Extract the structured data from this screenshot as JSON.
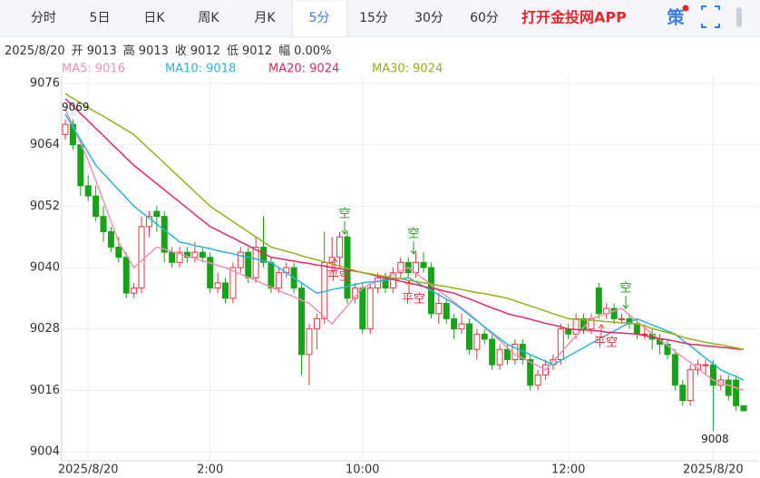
{
  "toolbar": {
    "tabs": [
      "分时",
      "5日",
      "日K",
      "周K",
      "月K",
      "5分",
      "15分",
      "30分",
      "60分"
    ],
    "active_tab": "5分",
    "app_link": "打开金投网APP",
    "strategy": "策"
  },
  "quote": {
    "date": "2025/8/20",
    "fields": [
      {
        "label": "开",
        "value": 9013
      },
      {
        "label": "高",
        "value": 9013
      },
      {
        "label": "收",
        "value": 9012
      },
      {
        "label": "低",
        "value": 9012
      },
      {
        "label": "幅",
        "value": "0.00%"
      }
    ]
  },
  "chart_data": {
    "type": "candlestick",
    "categories": [
      null,
      null,
      null,
      "2025/8/20",
      null,
      null,
      null,
      null,
      null,
      null,
      null,
      null,
      null,
      null,
      null,
      null,
      null,
      null,
      null,
      "2:00",
      null,
      null,
      null,
      null,
      null,
      null,
      null,
      null,
      null,
      null,
      null,
      null,
      null,
      null,
      null,
      null,
      null,
      null,
      null,
      "10:00",
      null,
      null,
      null,
      null,
      null,
      null,
      null,
      null,
      null,
      null,
      null,
      null,
      null,
      null,
      null,
      null,
      null,
      null,
      null,
      null,
      null,
      null,
      null,
      null,
      null,
      null,
      "12:00",
      null,
      null,
      null,
      null,
      null,
      null,
      null,
      null,
      null,
      null,
      null,
      null,
      null,
      null,
      null,
      null,
      null,
      null,
      "2025/8/20",
      null,
      null,
      null,
      null
    ],
    "ohlc": [
      [
        9066,
        9069,
        9065,
        9068
      ],
      [
        9068,
        9069,
        9063,
        9064
      ],
      [
        9064,
        9065,
        9054,
        9056
      ],
      [
        9056,
        9058,
        9053,
        9054
      ],
      [
        9054,
        9056,
        9049,
        9050
      ],
      [
        9050,
        9052,
        9045,
        9047
      ],
      [
        9047,
        9048,
        9043,
        9044
      ],
      [
        9044,
        9046,
        9041,
        9042
      ],
      [
        9042,
        9043,
        9034,
        9035
      ],
      [
        9035,
        9037,
        9034,
        9036
      ],
      [
        9036,
        9050,
        9035,
        9048
      ],
      [
        9048,
        9051,
        9046,
        9050
      ],
      [
        9051,
        9052,
        9047,
        9050
      ],
      [
        9050,
        9051,
        9041,
        9043
      ],
      [
        9043,
        9044,
        9040,
        9041
      ],
      [
        9041,
        9044,
        9040,
        9043
      ],
      [
        9043,
        9044,
        9041,
        9042
      ],
      [
        9042,
        9045,
        9041,
        9043
      ],
      [
        9043,
        9044,
        9041,
        9042
      ],
      [
        9042,
        9043,
        9035,
        9036
      ],
      [
        9036,
        9039,
        9035,
        9037
      ],
      [
        9037,
        9038,
        9033,
        9034
      ],
      [
        9034,
        9041,
        9033,
        9040
      ],
      [
        9040,
        9044,
        9039,
        9043
      ],
      [
        9043,
        9044,
        9037,
        9038
      ],
      [
        9038,
        9046,
        9037,
        9044
      ],
      [
        9044,
        9050,
        9040,
        9041
      ],
      [
        9041,
        9042,
        9035,
        9036
      ],
      [
        9036,
        9040,
        9035,
        9039
      ],
      [
        9039,
        9041,
        9038,
        9040
      ],
      [
        9040,
        9041,
        9035,
        9036
      ],
      [
        9036,
        9037,
        9019,
        9023
      ],
      [
        9023,
        9029,
        9017,
        9028
      ],
      [
        9028,
        9031,
        9024,
        9030
      ],
      [
        9030,
        9047,
        9029,
        9041
      ],
      [
        9041,
        9046,
        9039,
        9042
      ],
      [
        9042,
        9047,
        9040,
        9046
      ],
      [
        9046,
        9047,
        9033,
        9034
      ],
      [
        9034,
        9037,
        9033,
        9036
      ],
      [
        9036,
        9037,
        9027,
        9028
      ],
      [
        9028,
        9037,
        9027,
        9036
      ],
      [
        9036,
        9039,
        9035,
        9038
      ],
      [
        9038,
        9039,
        9035,
        9036
      ],
      [
        9036,
        9040,
        9035,
        9039
      ],
      [
        9039,
        9042,
        9038,
        9041
      ],
      [
        9041,
        9042,
        9038,
        9039
      ],
      [
        9039,
        9043,
        9038,
        9041
      ],
      [
        9041,
        9043,
        9039,
        9040
      ],
      [
        9040,
        9041,
        9030,
        9031
      ],
      [
        9031,
        9035,
        9029,
        9033
      ],
      [
        9033,
        9034,
        9029,
        9030
      ],
      [
        9030,
        9031,
        9026,
        9028
      ],
      [
        9028,
        9031,
        9027,
        9029
      ],
      [
        9029,
        9030,
        9023,
        9024
      ],
      [
        9024,
        9028,
        9022,
        9027
      ],
      [
        9027,
        9028,
        9025,
        9026
      ],
      [
        9026,
        9027,
        9020,
        9021
      ],
      [
        9021,
        9025,
        9020,
        9024
      ],
      [
        9024,
        9025,
        9021,
        9022
      ],
      [
        9022,
        9026,
        9021,
        9025
      ],
      [
        9025,
        9026,
        9021,
        9022
      ],
      [
        9022,
        9023,
        9016,
        9017
      ],
      [
        9017,
        9020,
        9016,
        9019
      ],
      [
        9019,
        9022,
        9018,
        9021
      ],
      [
        9021,
        9023,
        9020,
        9022
      ],
      [
        9022,
        9029,
        9021,
        9028
      ],
      [
        9028,
        9029,
        9026,
        9027
      ],
      [
        9027,
        9031,
        9026,
        9030
      ],
      [
        9030,
        9031,
        9027,
        9028
      ],
      [
        9028,
        9031,
        9027,
        9030
      ],
      [
        9036,
        9037,
        9030,
        9031
      ],
      [
        9031,
        9033,
        9030,
        9032
      ],
      [
        9032,
        9033,
        9029,
        9030
      ],
      [
        9030,
        9031,
        9029,
        9030
      ],
      [
        9030,
        9031,
        9028,
        9029
      ],
      [
        9029,
        9030,
        9026,
        9027
      ],
      [
        9027,
        9029,
        9026,
        9027
      ],
      [
        9027,
        9028,
        9024,
        9026
      ],
      [
        9026,
        9027,
        9023,
        9025
      ],
      [
        9025,
        9026,
        9022,
        9023
      ],
      [
        9023,
        9024,
        9016,
        9017
      ],
      [
        9017,
        9018,
        9013,
        9014
      ],
      [
        9014,
        9021,
        9013,
        9020
      ],
      [
        9020,
        9022,
        9019,
        9021
      ],
      [
        9021,
        9022,
        9019,
        9021
      ],
      [
        9021,
        9022,
        9008,
        9017
      ],
      [
        9017,
        9019,
        9016,
        9018
      ],
      [
        9018,
        9019,
        9014,
        9015
      ],
      [
        9018,
        9019,
        9012,
        9013
      ],
      [
        9013,
        9013,
        9012,
        9012
      ]
    ],
    "up_color": "#e8343a",
    "down_color": "#17a317",
    "series": [
      {
        "name": "MA5: 9016",
        "color": "#f291b0",
        "values": [
          9071,
          9067.7,
          9064.3,
          9061,
          9057,
          9053,
          9049,
          9045,
          9042.5,
          9040,
          9041.3,
          9042.7,
          9044,
          9043.6,
          9043.1,
          9042.7,
          9042.2,
          9041.8,
          9041.3,
          9040.9,
          9040.4,
          9040,
          9039.4,
          9038.7,
          9038.1,
          9037.5,
          9036.8,
          9036.2,
          9035.5,
          9034.9,
          9034.3,
          9033.6,
          9033,
          9031.7,
          9030.3,
          9029,
          9030.8,
          9032.5,
          9034.3,
          9036,
          9036.7,
          9037.3,
          9038,
          9038.7,
          9039.3,
          9040,
          9038.9,
          9037.8,
          9036.6,
          9035.5,
          9034.4,
          9033.3,
          9032.1,
          9031,
          9029.7,
          9028.3,
          9027,
          9025.7,
          9024.3,
          9023,
          9022.3,
          9021.5,
          9020.8,
          9020,
          9021.7,
          9023.3,
          9025,
          9026.7,
          9028.3,
          9030,
          9030.5,
          9031,
          9031.5,
          9032,
          9030.8,
          9029.5,
          9028.3,
          9027,
          9025.9,
          9024.8,
          9023.6,
          9022.5,
          9021.4,
          9020.3,
          9019.1,
          9018,
          9017.5,
          9017,
          9016.5,
          9016
        ]
      },
      {
        "name": "MA10: 9018",
        "color": "#2cb4d8",
        "values": [
          9070,
          9067.5,
          9065,
          9062.5,
          9060,
          9058.4,
          9056.8,
          9055.2,
          9053.6,
          9052,
          9050.8,
          9049.7,
          9048.5,
          9047.3,
          9046.2,
          9045,
          9044.7,
          9044.3,
          9044,
          9043.7,
          9043.3,
          9043,
          9042.7,
          9042.3,
          9042,
          9041.7,
          9041.3,
          9041,
          9040,
          9039,
          9038,
          9037,
          9036,
          9035,
          9035.3,
          9035.7,
          9036,
          9036.3,
          9036.7,
          9037,
          9037.2,
          9037.3,
          9037.5,
          9037.7,
          9037.8,
          9038,
          9037.2,
          9036.3,
          9035.5,
          9034.7,
          9033.8,
          9033,
          9031.9,
          9030.7,
          9029.6,
          9028.4,
          9027.3,
          9026.1,
          9025,
          9024.3,
          9023.7,
          9023,
          9022.3,
          9021.7,
          9021,
          9021.8,
          9022.7,
          9023.5,
          9024.3,
          9025.2,
          9026,
          9026.8,
          9027.6,
          9028.4,
          9029.2,
          9030,
          9029.4,
          9028.8,
          9028.2,
          9027.6,
          9027,
          9025.8,
          9024.7,
          9023.5,
          9022.3,
          9021.2,
          9020,
          9019.3,
          9018.7,
          9018
        ]
      },
      {
        "name": "MA20: 9024",
        "color": "#e3275f",
        "values": [
          9073,
          9071.6,
          9070.1,
          9068.7,
          9067.2,
          9065.8,
          9064.3,
          9062.9,
          9061.4,
          9060,
          9058.8,
          9057.6,
          9056.4,
          9055.2,
          9054,
          9052.8,
          9051.6,
          9050.4,
          9049.2,
          9048,
          9047.3,
          9046.5,
          9045.8,
          9045,
          9044.3,
          9043.5,
          9042.8,
          9042,
          9041.8,
          9041.5,
          9041.3,
          9041,
          9040.8,
          9040.5,
          9040.3,
          9040,
          9039.8,
          9039.5,
          9039.3,
          9039,
          9038.7,
          9038.3,
          9038,
          9037.7,
          9037.3,
          9037,
          9036.7,
          9036.3,
          9036,
          9035.7,
          9035.3,
          9035,
          9034.4,
          9033.9,
          9033.3,
          9032.7,
          9032.1,
          9031.6,
          9031,
          9030.6,
          9030.3,
          9029.9,
          9029.5,
          9029.1,
          9028.8,
          9028.4,
          9028,
          9027.9,
          9027.8,
          9027.7,
          9027.6,
          9027.4,
          9027.3,
          9027.2,
          9027.1,
          9027,
          9026.7,
          9026.4,
          9026.1,
          9025.9,
          9025.6,
          9025.3,
          9025,
          9024.9,
          9024.7,
          9024.6,
          9024.4,
          9024.3,
          9024.1,
          9024
        ]
      },
      {
        "name": "MA30: 9024",
        "color": "#9aae1c",
        "values": [
          9074,
          9073.1,
          9072.2,
          9071.3,
          9070.4,
          9069.6,
          9068.7,
          9067.8,
          9066.9,
          9066,
          9064.6,
          9063.2,
          9061.8,
          9060.4,
          9059,
          9057.6,
          9056.2,
          9054.8,
          9053.4,
          9052,
          9051,
          9050,
          9049,
          9048,
          9047,
          9046,
          9045,
          9044,
          9043.6,
          9043.2,
          9042.8,
          9042.3,
          9041.9,
          9041.5,
          9041.1,
          9040.7,
          9040.3,
          9039.8,
          9039.4,
          9039,
          9038.8,
          9038.5,
          9038.3,
          9038,
          9037.8,
          9037.5,
          9037.3,
          9037,
          9036.8,
          9036.5,
          9036.3,
          9036,
          9035.7,
          9035.4,
          9035.1,
          9034.9,
          9034.6,
          9034.3,
          9034,
          9033.5,
          9033,
          9032.5,
          9032,
          9031.5,
          9031,
          9030.5,
          9030,
          9029.9,
          9029.8,
          9029.7,
          9029.6,
          9029.4,
          9029.3,
          9029.2,
          9029.1,
          9029,
          9028.6,
          9028.1,
          9027.7,
          9027.3,
          9026.9,
          9026.4,
          9026,
          9025.7,
          9025.4,
          9025.1,
          9024.9,
          9024.6,
          9024.3,
          9024
        ]
      }
    ],
    "ylim": [
      9004,
      9076
    ],
    "yticks": [
      9004,
      9016,
      9028,
      9040,
      9052,
      9064,
      9076
    ],
    "grid": true,
    "max_label": 9069,
    "min_label": 9008,
    "annotations": [
      "空",
      "平空",
      "空",
      "平空",
      "空",
      "平空"
    ]
  }
}
